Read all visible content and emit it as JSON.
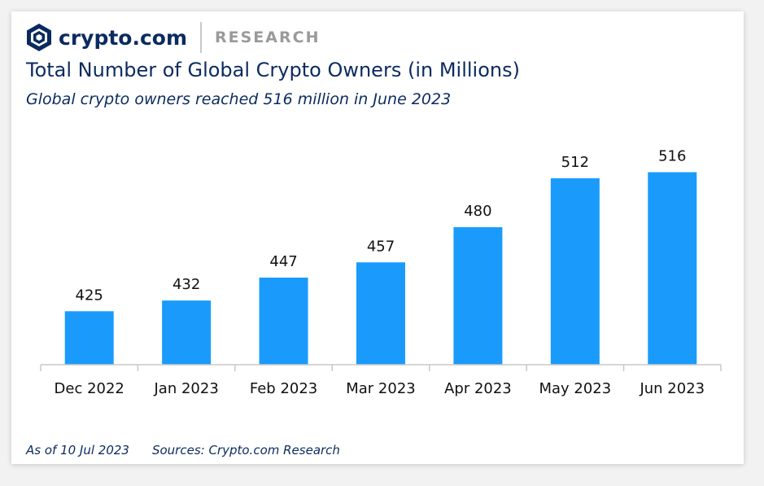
{
  "brand": {
    "name": "crypto.com",
    "section": "RESEARCH",
    "color": "#0b2b5f"
  },
  "chart_data": {
    "type": "bar",
    "title": "Total Number of Global Crypto Owners (in Millions)",
    "subtitle": "Global crypto owners reached 516 million in June 2023",
    "categories": [
      "Dec 2022",
      "Jan 2023",
      "Feb 2023",
      "Mar 2023",
      "Apr 2023",
      "May 2023",
      "Jun 2023"
    ],
    "values": [
      425,
      432,
      447,
      457,
      480,
      512,
      516
    ],
    "data_labels": [
      "425",
      "432",
      "447",
      "457",
      "480",
      "512",
      "516"
    ],
    "xlabel": "",
    "ylabel": "",
    "ylim": [
      390,
      528
    ],
    "y_axis_visible": false,
    "grid": false,
    "bar_color": "#1a9bfc"
  },
  "footer": {
    "as_of": "As of 10 Jul 2023",
    "sources": "Sources: Crypto.com Research"
  }
}
